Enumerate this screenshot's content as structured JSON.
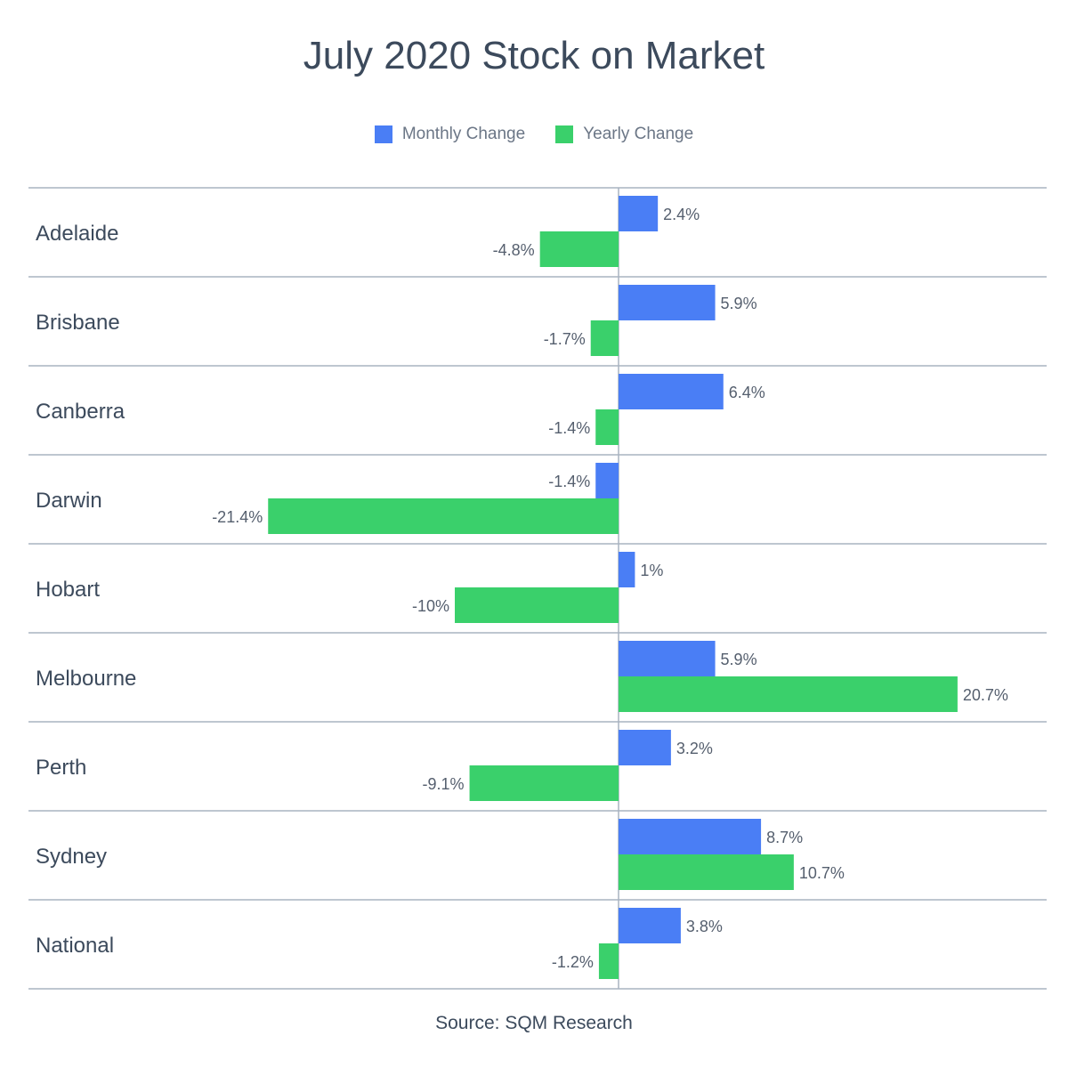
{
  "chart_data": {
    "type": "bar",
    "orientation": "horizontal",
    "title": "July 2020 Stock on Market",
    "categories": [
      "Adelaide",
      "Brisbane",
      "Canberra",
      "Darwin",
      "Hobart",
      "Melbourne",
      "Perth",
      "Sydney",
      "National"
    ],
    "series": [
      {
        "name": "Monthly Change",
        "color": "#4a7ef5",
        "values": [
          2.4,
          5.9,
          6.4,
          -1.4,
          1,
          5.9,
          3.2,
          8.7,
          3.8
        ],
        "labels": [
          "2.4%",
          "5.9%",
          "6.4%",
          "-1.4%",
          "1%",
          "5.9%",
          "3.2%",
          "8.7%",
          "3.8%"
        ]
      },
      {
        "name": "Yearly Change",
        "color": "#3ad06b",
        "values": [
          -4.8,
          -1.7,
          -1.4,
          -21.4,
          -10,
          20.7,
          -9.1,
          10.7,
          -1.2
        ],
        "labels": [
          "-4.8%",
          "-1.7%",
          "-1.4%",
          "-21.4%",
          "-10%",
          "20.7%",
          "-9.1%",
          "10.7%",
          "-1.2%"
        ]
      }
    ],
    "grid": true,
    "legend_position": "top-center",
    "source": "Source: SQM Research"
  }
}
